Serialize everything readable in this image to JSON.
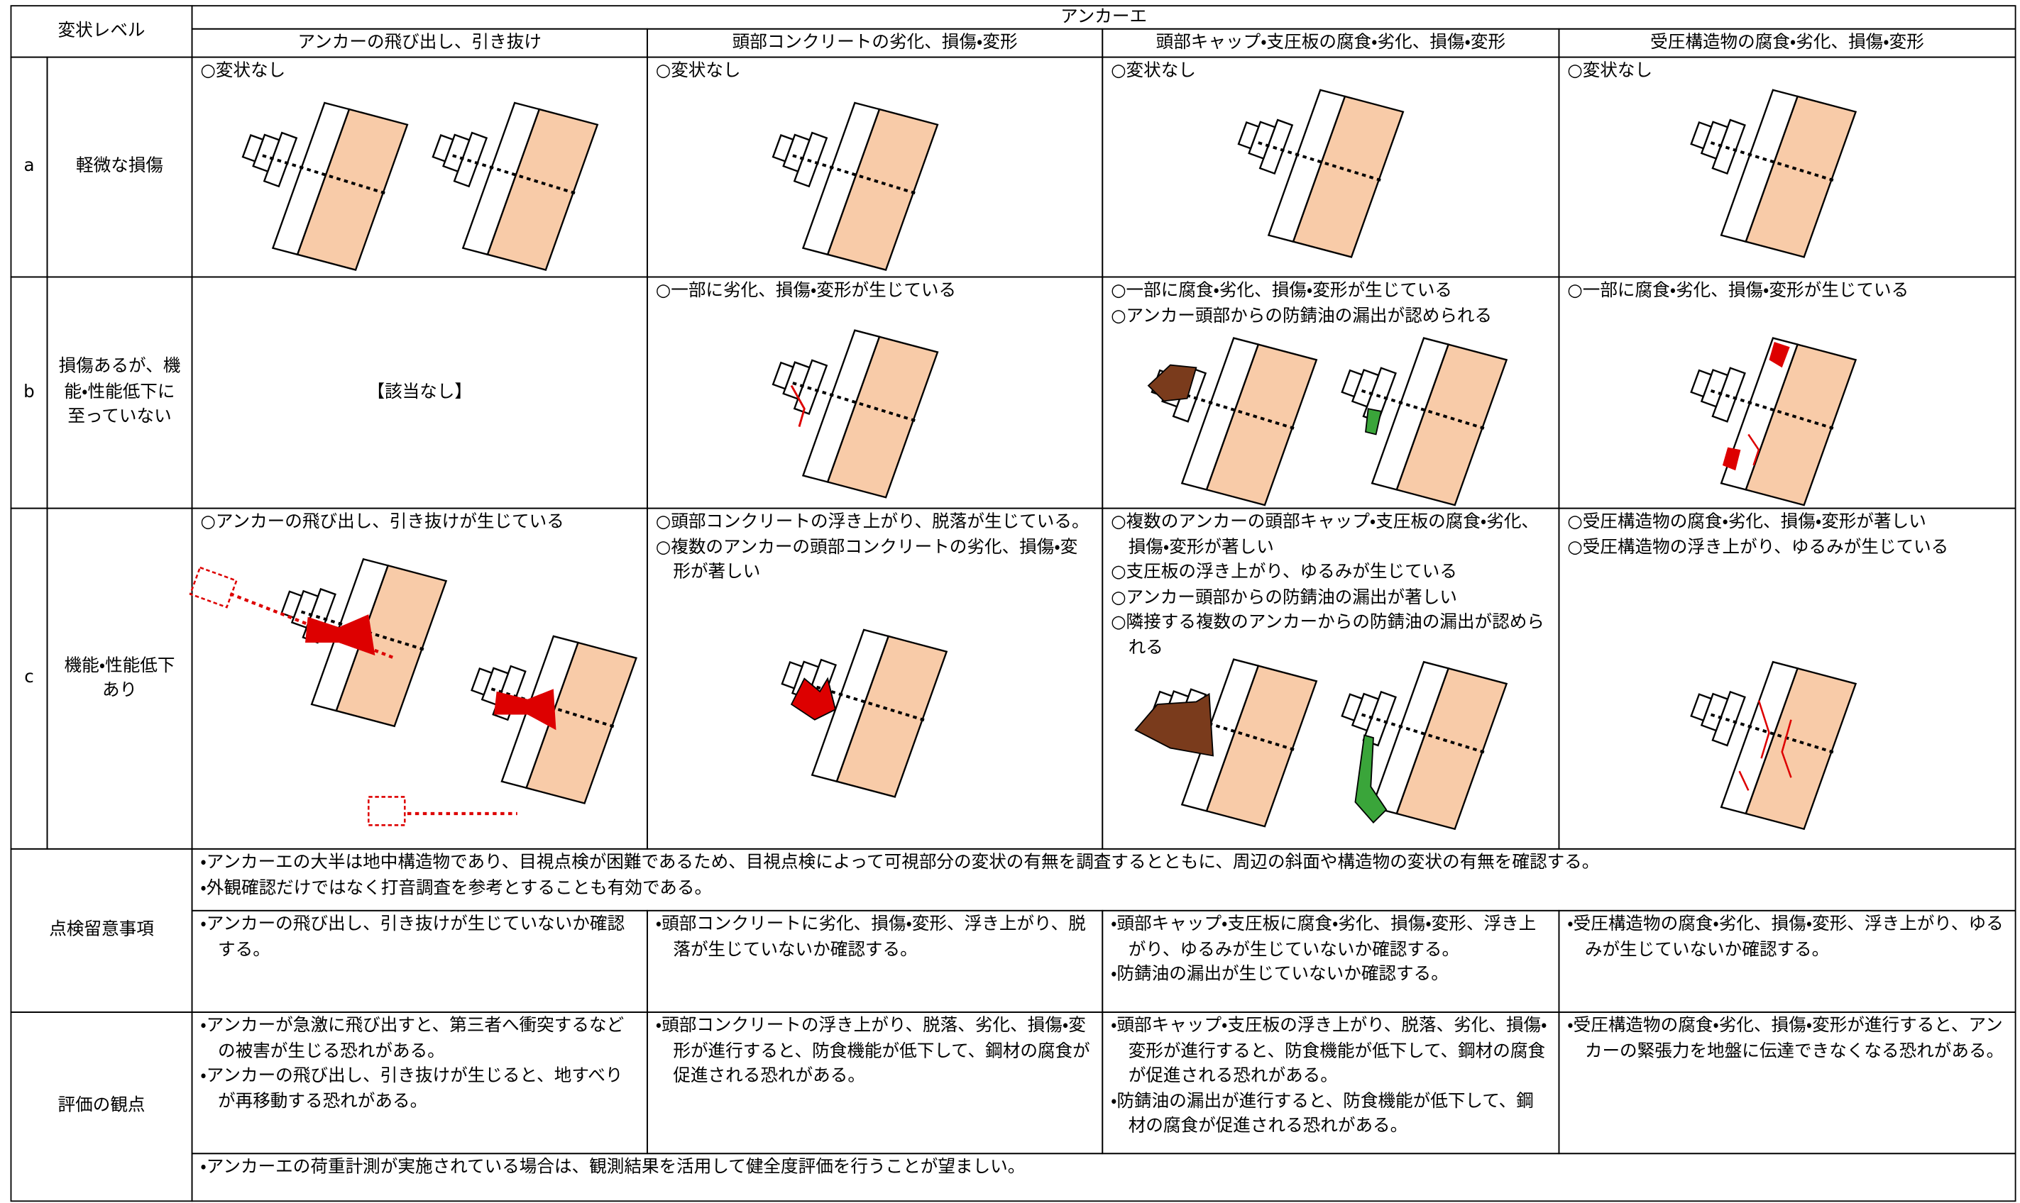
{
  "header": {
    "level_label": "変状レベル",
    "group_label": "アンカーエ",
    "columns": [
      "アンカーの飛び出し、引き抜け",
      "頭部コンクリートの劣化、損傷・変形",
      "頭部キャップ・支圧板の腐食・劣化、損傷・変形",
      "受圧構造物の腐食・劣化、損傷・変形"
    ]
  },
  "rows": [
    {
      "level": "a",
      "description": "軽微な損傷",
      "cells": [
        [
          "○変状なし"
        ],
        [
          "○変状なし"
        ],
        [
          "○変状なし"
        ],
        [
          "○変状なし"
        ]
      ]
    },
    {
      "level": "b",
      "description": "損傷あるが、機能・性能低下に至っていない",
      "cells": [
        [
          "【該当なし】"
        ],
        [
          "○一部に劣化、損傷・変形が生じている"
        ],
        [
          "○一部に腐食・劣化、損傷・変形が生じている",
          "○アンカー頭部からの防錆油の漏出が認められる"
        ],
        [
          "○一部に腐食・劣化、損傷・変形が生じている"
        ]
      ]
    },
    {
      "level": "c",
      "description": "機能・性能低下あり",
      "cells": [
        [
          "○アンカーの飛び出し、引き抜けが生じている"
        ],
        [
          "○頭部コンクリートの浮き上がり、脱落が生じている。",
          "○複数のアンカーの頭部コンクリートの劣化、損傷・変形が著しい"
        ],
        [
          "○複数のアンカーの頭部キャップ・支圧板の腐食・劣化、損傷・変形が著しい",
          "○支圧板の浮き上がり、ゆるみが生じている",
          "○アンカー頭部からの防錆油の漏出が著しい",
          "○隣接する複数のアンカーからの防錆油の漏出が認められる"
        ],
        [
          "○受圧構造物の腐食・劣化、損傷・変形が著しい",
          "○受圧構造物の浮き上がり、ゆるみが生じている"
        ]
      ]
    }
  ],
  "inspection": {
    "label": "点検留意事項",
    "common": [
      "・アンカーエの大半は地中構造物であり、目視点検が困難であるため、目視点検によって可視部分の変状の有無を調査するとともに、周辺の斜面や構造物の変状の有無を確認する。",
      "・外観確認だけではなく打音調査を参考とすることも有効である。"
    ],
    "cells": [
      [
        "・アンカーの飛び出し、引き抜けが生じていないか確認する。"
      ],
      [
        "・頭部コンクリートに劣化、損傷・変形、浮き上がり、脱落が生じていないか確認する。"
      ],
      [
        "・頭部キャップ・支圧板に腐食・劣化、損傷・変形、浮き上がり、ゆるみが生じていないか確認する。",
        "・防錆油の漏出が生じていないか確認する。"
      ],
      [
        "・受圧構造物の腐食・劣化、損傷・変形、浮き上がり、ゆるみが生じていないか確認する。"
      ]
    ]
  },
  "evaluation": {
    "label": "評価の観点",
    "cells": [
      [
        "・アンカーが急激に飛び出すと、第三者へ衝突するなどの被害が生じる恐れがある。",
        "・アンカーの飛び出し、引き抜けが生じると、地すべりが再移動する恐れがある。"
      ],
      [
        "・頭部コンクリートの浮き上がり、脱落、劣化、損傷・変形が進行すると、防食機能が低下して、鋼材の腐食が促進される恐れがある。"
      ],
      [
        "・頭部キャップ・支圧板の浮き上がり、脱落、劣化、損傷・変形が進行すると、防食機能が低下して、鋼材の腐食が促進される恐れがある。",
        "・防錆油の漏出が進行すると、防食機能が低下して、鋼材の腐食が促進される恐れがある。"
      ],
      [
        "・受圧構造物の腐食・劣化、損傷・変形が進行すると、アンカーの緊張力を地盤に伝達できなくなる恐れがある。"
      ]
    ],
    "common": [
      "・アンカーエの荷重計測が実施されている場合は、観測結果を活用して健全度評価を行うことが望ましい。"
    ]
  }
}
